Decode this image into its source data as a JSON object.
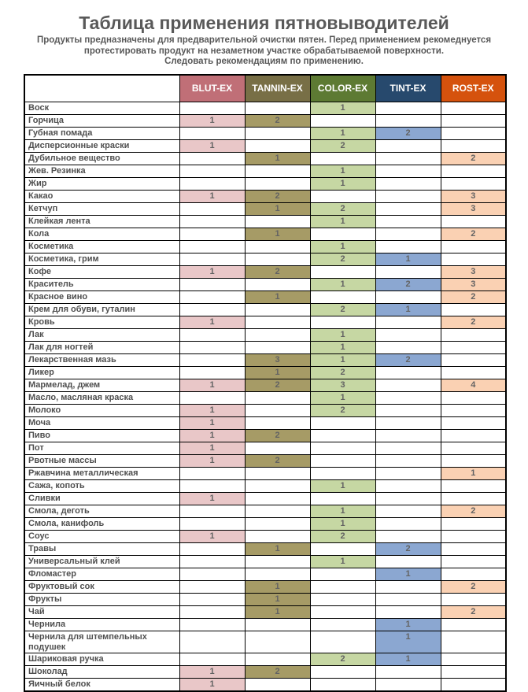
{
  "title": "Таблица применения пятновыводителей",
  "subtitle_lines": [
    "Продукты предназначены для предварительной очистки пятен. Перед применением рекомеднуется",
    "протестировать продукт на незаметном участке обрабатываемой поверхности.",
    "Следовать рекомендациям по применению."
  ],
  "colors": {
    "title_text": "#595959",
    "header_text": "#ffffff",
    "grid_border": "#000000"
  },
  "columns": [
    {
      "label": "BLUT-EX",
      "header_bg": "#c06f77",
      "cell_bg": "#e9c7c8"
    },
    {
      "label": "TANNIN-EX",
      "header_bg": "#786f46",
      "cell_bg": "#a69b66"
    },
    {
      "label": "COLOR-EX",
      "header_bg": "#5d7a33",
      "cell_bg": "#c6d7a3"
    },
    {
      "label": "TINT-EX",
      "header_bg": "#27496d",
      "cell_bg": "#8ba7d1"
    },
    {
      "label": "ROST-EX",
      "header_bg": "#d5520d",
      "cell_bg": "#fad1b3"
    }
  ],
  "rows": [
    {
      "label": "Воск",
      "values": [
        "",
        "",
        "1",
        "",
        ""
      ]
    },
    {
      "label": "Горчица",
      "values": [
        "1",
        "2",
        "",
        "",
        ""
      ]
    },
    {
      "label": "Губная помада",
      "values": [
        "",
        "",
        "1",
        "2",
        ""
      ]
    },
    {
      "label": "Дисперсионные краски",
      "values": [
        "1",
        "",
        "2",
        "",
        ""
      ]
    },
    {
      "label": "Дубильное вещество",
      "values": [
        "",
        "1",
        "",
        "",
        "2"
      ]
    },
    {
      "label": "Жев. Резинка",
      "values": [
        "",
        "",
        "1",
        "",
        ""
      ]
    },
    {
      "label": "Жир",
      "values": [
        "",
        "",
        "1",
        "",
        ""
      ]
    },
    {
      "label": "Какао",
      "values": [
        "1",
        "2",
        "",
        "",
        "3"
      ]
    },
    {
      "label": "Кетчуп",
      "values": [
        "",
        "1",
        "2",
        "",
        "3"
      ]
    },
    {
      "label": "Клейкая лента",
      "values": [
        "",
        "",
        "1",
        "",
        ""
      ]
    },
    {
      "label": "Кола",
      "values": [
        "",
        "1",
        "",
        "",
        "2"
      ]
    },
    {
      "label": "Косметика",
      "values": [
        "",
        "",
        "1",
        "",
        ""
      ]
    },
    {
      "label": "Косметика, грим",
      "values": [
        "",
        "",
        "2",
        "1",
        ""
      ]
    },
    {
      "label": "Кофе",
      "values": [
        "1",
        "2",
        "",
        "",
        "3"
      ]
    },
    {
      "label": "Краситель",
      "values": [
        "",
        "",
        "1",
        "2",
        "3"
      ]
    },
    {
      "label": "Красное вино",
      "values": [
        "",
        "1",
        "",
        "",
        "2"
      ]
    },
    {
      "label": "Крем для обуви, гуталин",
      "values": [
        "",
        "",
        "2",
        "1",
        ""
      ]
    },
    {
      "label": "Кровь",
      "values": [
        "1",
        "",
        "",
        "",
        "2"
      ]
    },
    {
      "label": "Лак",
      "values": [
        "",
        "",
        "1",
        "",
        ""
      ]
    },
    {
      "label": "Лак для ногтей",
      "values": [
        "",
        "",
        "1",
        "",
        ""
      ]
    },
    {
      "label": "Лекарственная мазь",
      "values": [
        "",
        "3",
        "1",
        "2",
        ""
      ]
    },
    {
      "label": "Ликер",
      "values": [
        "",
        "1",
        "2",
        "",
        ""
      ]
    },
    {
      "label": "Мармелад, джем",
      "values": [
        "1",
        "2",
        "3",
        "",
        "4"
      ]
    },
    {
      "label": "Масло, масляная краска",
      "values": [
        "",
        "",
        "1",
        "",
        ""
      ]
    },
    {
      "label": "Молоко",
      "values": [
        "1",
        "",
        "2",
        "",
        ""
      ]
    },
    {
      "label": "Моча",
      "values": [
        "1",
        "",
        "",
        "",
        ""
      ]
    },
    {
      "label": "Пиво",
      "values": [
        "1",
        "2",
        "",
        "",
        ""
      ]
    },
    {
      "label": "Пот",
      "values": [
        "1",
        "",
        "",
        "",
        ""
      ]
    },
    {
      "label": "Рвотные массы",
      "values": [
        "1",
        "2",
        "",
        "",
        ""
      ]
    },
    {
      "label": "Ржавчина металлическая",
      "values": [
        "",
        "",
        "",
        "",
        "1"
      ]
    },
    {
      "label": "Сажа, копоть",
      "values": [
        "",
        "",
        "1",
        "",
        ""
      ]
    },
    {
      "label": "Сливки",
      "values": [
        "1",
        "",
        "",
        "",
        ""
      ]
    },
    {
      "label": "Смола, деготь",
      "values": [
        "",
        "",
        "1",
        "",
        "2"
      ]
    },
    {
      "label": "Смола, канифоль",
      "values": [
        "",
        "",
        "1",
        "",
        ""
      ]
    },
    {
      "label": "Соус",
      "values": [
        "1",
        "",
        "2",
        "",
        ""
      ]
    },
    {
      "label": "Травы",
      "values": [
        "",
        "1",
        "",
        "2",
        ""
      ]
    },
    {
      "label": "Универсальный клей",
      "values": [
        "",
        "",
        "1",
        "",
        ""
      ]
    },
    {
      "label": "Фломастер",
      "values": [
        "",
        "",
        "",
        "1",
        ""
      ]
    },
    {
      "label": "Фруктовый сок",
      "values": [
        "",
        "1",
        "",
        "",
        "2"
      ]
    },
    {
      "label": "Фрукты",
      "values": [
        "",
        "1",
        "",
        "",
        ""
      ]
    },
    {
      "label": "Чай",
      "values": [
        "",
        "1",
        "",
        "",
        "2"
      ]
    },
    {
      "label": "Чернила",
      "values": [
        "",
        "",
        "",
        "1",
        ""
      ]
    },
    {
      "label": "Чернила для штемпельных подушек",
      "values": [
        "",
        "",
        "",
        "1",
        ""
      ],
      "tall": true
    },
    {
      "label": "Шариковая ручка",
      "values": [
        "",
        "",
        "2",
        "1",
        ""
      ]
    },
    {
      "label": "Шоколад",
      "values": [
        "1",
        "2",
        "",
        "",
        ""
      ]
    },
    {
      "label": "Яичный белок",
      "values": [
        "1",
        "",
        "",
        "",
        ""
      ]
    }
  ]
}
